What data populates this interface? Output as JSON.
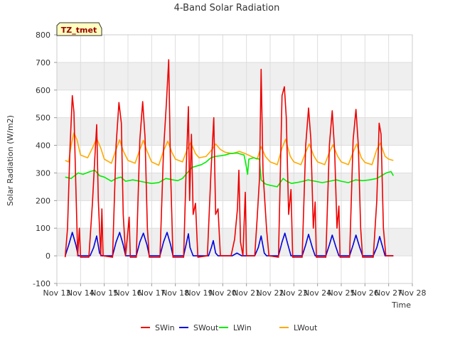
{
  "chart_data": {
    "type": "line",
    "title": "4-Band Solar Radiation",
    "xlabel": "Time",
    "ylabel": "Solar Radiation (W/m2)",
    "site_tag": "TZ_tmet",
    "xlim": [
      13,
      28
    ],
    "ylim": [
      -100,
      800
    ],
    "x_ticks": [
      {
        "value": 13,
        "label": "Nov 13"
      },
      {
        "value": 14,
        "label": "Nov 14"
      },
      {
        "value": 15,
        "label": "Nov 15"
      },
      {
        "value": 16,
        "label": "Nov 16"
      },
      {
        "value": 17,
        "label": "Nov 17"
      },
      {
        "value": 18,
        "label": "Nov 18"
      },
      {
        "value": 19,
        "label": "Nov 19"
      },
      {
        "value": 20,
        "label": "Nov 20"
      },
      {
        "value": 21,
        "label": "Nov 21"
      },
      {
        "value": 22,
        "label": "Nov 22"
      },
      {
        "value": 23,
        "label": "Nov 23"
      },
      {
        "value": 24,
        "label": "Nov 24"
      },
      {
        "value": 25,
        "label": "Nov 25"
      },
      {
        "value": 26,
        "label": "Nov 26"
      },
      {
        "value": 27,
        "label": "Nov 27"
      },
      {
        "value": 28,
        "label": "Nov 28"
      }
    ],
    "y_ticks": [
      -100,
      0,
      100,
      200,
      300,
      400,
      500,
      600,
      700,
      800
    ],
    "grid": true,
    "legend_position": "bottom",
    "series": [
      {
        "name": "SWin",
        "color": "#ee0000",
        "points": [
          [
            13.35,
            -5
          ],
          [
            13.45,
            100
          ],
          [
            13.55,
            380
          ],
          [
            13.65,
            580
          ],
          [
            13.72,
            520
          ],
          [
            13.8,
            250
          ],
          [
            13.88,
            0
          ],
          [
            13.95,
            100
          ],
          [
            14.0,
            -5
          ],
          [
            14.35,
            -5
          ],
          [
            14.5,
            190
          ],
          [
            14.6,
            350
          ],
          [
            14.68,
            475
          ],
          [
            14.75,
            200
          ],
          [
            14.85,
            0
          ],
          [
            14.9,
            170
          ],
          [
            14.95,
            0
          ],
          [
            15.35,
            -5
          ],
          [
            15.5,
            400
          ],
          [
            15.62,
            555
          ],
          [
            15.72,
            480
          ],
          [
            15.8,
            150
          ],
          [
            15.9,
            0
          ],
          [
            16.05,
            140
          ],
          [
            16.1,
            -5
          ],
          [
            16.35,
            -5
          ],
          [
            16.5,
            420
          ],
          [
            16.62,
            558
          ],
          [
            16.72,
            430
          ],
          [
            16.82,
            100
          ],
          [
            16.9,
            -5
          ],
          [
            17.35,
            -5
          ],
          [
            17.5,
            380
          ],
          [
            17.62,
            550
          ],
          [
            17.72,
            710
          ],
          [
            17.8,
            300
          ],
          [
            17.9,
            -5
          ],
          [
            18.35,
            -5
          ],
          [
            18.45,
            300
          ],
          [
            18.55,
            540
          ],
          [
            18.6,
            200
          ],
          [
            18.68,
            440
          ],
          [
            18.75,
            150
          ],
          [
            18.85,
            190
          ],
          [
            18.95,
            -5
          ],
          [
            19.35,
            0
          ],
          [
            19.5,
            300
          ],
          [
            19.62,
            500
          ],
          [
            19.7,
            150
          ],
          [
            19.8,
            170
          ],
          [
            19.9,
            0
          ],
          [
            20.35,
            0
          ],
          [
            20.5,
            60
          ],
          [
            20.62,
            170
          ],
          [
            20.68,
            310
          ],
          [
            20.75,
            50
          ],
          [
            20.85,
            0
          ],
          [
            20.95,
            230
          ],
          [
            21.0,
            0
          ],
          [
            21.35,
            0
          ],
          [
            21.45,
            135
          ],
          [
            21.55,
            280
          ],
          [
            21.62,
            675
          ],
          [
            21.7,
            300
          ],
          [
            21.85,
            95
          ],
          [
            21.95,
            0
          ],
          [
            22.35,
            -5
          ],
          [
            22.5,
            580
          ],
          [
            22.6,
            612
          ],
          [
            22.68,
            500
          ],
          [
            22.78,
            150
          ],
          [
            22.88,
            240
          ],
          [
            22.95,
            -5
          ],
          [
            23.35,
            -5
          ],
          [
            23.5,
            400
          ],
          [
            23.62,
            535
          ],
          [
            23.72,
            420
          ],
          [
            23.82,
            100
          ],
          [
            23.9,
            195
          ],
          [
            23.95,
            -5
          ],
          [
            24.35,
            -5
          ],
          [
            24.5,
            400
          ],
          [
            24.62,
            525
          ],
          [
            24.72,
            380
          ],
          [
            24.82,
            100
          ],
          [
            24.9,
            180
          ],
          [
            24.95,
            -5
          ],
          [
            25.35,
            -5
          ],
          [
            25.5,
            420
          ],
          [
            25.62,
            530
          ],
          [
            25.72,
            400
          ],
          [
            25.82,
            100
          ],
          [
            25.9,
            -5
          ],
          [
            26.35,
            -5
          ],
          [
            26.5,
            200
          ],
          [
            26.6,
            480
          ],
          [
            26.68,
            440
          ],
          [
            26.78,
            100
          ],
          [
            26.88,
            0
          ],
          [
            27.2,
            0
          ]
        ]
      },
      {
        "name": "SWout",
        "color": "#0000dd",
        "points": [
          [
            13.35,
            0
          ],
          [
            13.5,
            40
          ],
          [
            13.65,
            85
          ],
          [
            13.8,
            40
          ],
          [
            13.9,
            0
          ],
          [
            14.4,
            0
          ],
          [
            14.55,
            30
          ],
          [
            14.68,
            72
          ],
          [
            14.8,
            10
          ],
          [
            14.9,
            0
          ],
          [
            15.35,
            0
          ],
          [
            15.5,
            50
          ],
          [
            15.65,
            85
          ],
          [
            15.8,
            40
          ],
          [
            15.9,
            0
          ],
          [
            16.35,
            0
          ],
          [
            16.5,
            50
          ],
          [
            16.65,
            82
          ],
          [
            16.8,
            40
          ],
          [
            16.9,
            0
          ],
          [
            17.35,
            0
          ],
          [
            17.5,
            50
          ],
          [
            17.65,
            85
          ],
          [
            17.8,
            40
          ],
          [
            17.9,
            0
          ],
          [
            18.35,
            0
          ],
          [
            18.45,
            40
          ],
          [
            18.55,
            80
          ],
          [
            18.62,
            30
          ],
          [
            18.75,
            0
          ],
          [
            19.4,
            0
          ],
          [
            19.52,
            30
          ],
          [
            19.6,
            55
          ],
          [
            19.7,
            10
          ],
          [
            19.8,
            0
          ],
          [
            20.4,
            0
          ],
          [
            20.6,
            10
          ],
          [
            20.7,
            5
          ],
          [
            20.8,
            0
          ],
          [
            21.35,
            0
          ],
          [
            21.5,
            30
          ],
          [
            21.62,
            72
          ],
          [
            21.75,
            10
          ],
          [
            21.85,
            0
          ],
          [
            22.35,
            0
          ],
          [
            22.5,
            50
          ],
          [
            22.62,
            82
          ],
          [
            22.75,
            40
          ],
          [
            22.88,
            0
          ],
          [
            23.35,
            0
          ],
          [
            23.5,
            40
          ],
          [
            23.62,
            78
          ],
          [
            23.78,
            30
          ],
          [
            23.9,
            0
          ],
          [
            24.35,
            0
          ],
          [
            24.5,
            40
          ],
          [
            24.62,
            75
          ],
          [
            24.78,
            30
          ],
          [
            24.9,
            0
          ],
          [
            25.35,
            0
          ],
          [
            25.5,
            40
          ],
          [
            25.62,
            75
          ],
          [
            25.78,
            30
          ],
          [
            25.9,
            0
          ],
          [
            26.35,
            0
          ],
          [
            26.5,
            30
          ],
          [
            26.62,
            70
          ],
          [
            26.72,
            40
          ],
          [
            26.85,
            0
          ],
          [
            27.2,
            0
          ]
        ]
      },
      {
        "name": "LWin",
        "color": "#00ee00",
        "points": [
          [
            13.35,
            285
          ],
          [
            13.6,
            280
          ],
          [
            13.9,
            300
          ],
          [
            14.1,
            295
          ],
          [
            14.4,
            305
          ],
          [
            14.6,
            310
          ],
          [
            14.8,
            290
          ],
          [
            15.0,
            285
          ],
          [
            15.3,
            270
          ],
          [
            15.5,
            280
          ],
          [
            15.7,
            285
          ],
          [
            15.9,
            270
          ],
          [
            16.2,
            275
          ],
          [
            16.5,
            270
          ],
          [
            16.8,
            265
          ],
          [
            17.0,
            262
          ],
          [
            17.3,
            265
          ],
          [
            17.6,
            280
          ],
          [
            17.9,
            275
          ],
          [
            18.1,
            272
          ],
          [
            18.3,
            280
          ],
          [
            18.5,
            300
          ],
          [
            18.7,
            320
          ],
          [
            18.9,
            325
          ],
          [
            19.1,
            330
          ],
          [
            19.3,
            340
          ],
          [
            19.5,
            355
          ],
          [
            19.7,
            360
          ],
          [
            19.9,
            362
          ],
          [
            20.1,
            365
          ],
          [
            20.3,
            370
          ],
          [
            20.6,
            372
          ],
          [
            20.9,
            365
          ],
          [
            21.0,
            320
          ],
          [
            21.05,
            295
          ],
          [
            21.1,
            350
          ],
          [
            21.3,
            355
          ],
          [
            21.55,
            350
          ],
          [
            21.62,
            275
          ],
          [
            21.8,
            260
          ],
          [
            22.0,
            255
          ],
          [
            22.3,
            250
          ],
          [
            22.55,
            280
          ],
          [
            22.7,
            270
          ],
          [
            22.9,
            262
          ],
          [
            23.1,
            265
          ],
          [
            23.4,
            270
          ],
          [
            23.6,
            275
          ],
          [
            23.9,
            270
          ],
          [
            24.2,
            265
          ],
          [
            24.5,
            270
          ],
          [
            24.8,
            275
          ],
          [
            25.0,
            270
          ],
          [
            25.3,
            265
          ],
          [
            25.6,
            275
          ],
          [
            25.9,
            272
          ],
          [
            26.2,
            275
          ],
          [
            26.5,
            280
          ],
          [
            26.7,
            290
          ],
          [
            26.9,
            300
          ],
          [
            27.1,
            305
          ],
          [
            27.2,
            290
          ]
        ]
      },
      {
        "name": "LWout",
        "color": "#ffaa00",
        "points": [
          [
            13.35,
            345
          ],
          [
            13.5,
            340
          ],
          [
            13.6,
            400
          ],
          [
            13.72,
            445
          ],
          [
            13.85,
            420
          ],
          [
            14.0,
            365
          ],
          [
            14.3,
            355
          ],
          [
            14.5,
            390
          ],
          [
            14.68,
            425
          ],
          [
            14.85,
            390
          ],
          [
            15.0,
            350
          ],
          [
            15.3,
            335
          ],
          [
            15.5,
            385
          ],
          [
            15.65,
            420
          ],
          [
            15.8,
            380
          ],
          [
            16.0,
            345
          ],
          [
            16.3,
            335
          ],
          [
            16.5,
            385
          ],
          [
            16.65,
            418
          ],
          [
            16.8,
            380
          ],
          [
            17.0,
            340
          ],
          [
            17.3,
            328
          ],
          [
            17.5,
            380
          ],
          [
            17.68,
            415
          ],
          [
            17.85,
            375
          ],
          [
            18.0,
            350
          ],
          [
            18.3,
            340
          ],
          [
            18.5,
            385
          ],
          [
            18.65,
            410
          ],
          [
            18.85,
            370
          ],
          [
            19.0,
            355
          ],
          [
            19.3,
            360
          ],
          [
            19.55,
            385
          ],
          [
            19.7,
            405
          ],
          [
            19.9,
            385
          ],
          [
            20.1,
            375
          ],
          [
            20.4,
            370
          ],
          [
            20.7,
            378
          ],
          [
            20.95,
            370
          ],
          [
            21.2,
            360
          ],
          [
            21.45,
            350
          ],
          [
            21.62,
            395
          ],
          [
            21.8,
            360
          ],
          [
            22.0,
            340
          ],
          [
            22.3,
            330
          ],
          [
            22.5,
            390
          ],
          [
            22.65,
            422
          ],
          [
            22.85,
            360
          ],
          [
            23.0,
            340
          ],
          [
            23.3,
            330
          ],
          [
            23.5,
            375
          ],
          [
            23.65,
            405
          ],
          [
            23.85,
            360
          ],
          [
            24.0,
            340
          ],
          [
            24.3,
            330
          ],
          [
            24.5,
            375
          ],
          [
            24.65,
            402
          ],
          [
            24.85,
            360
          ],
          [
            25.0,
            340
          ],
          [
            25.3,
            330
          ],
          [
            25.5,
            375
          ],
          [
            25.65,
            405
          ],
          [
            25.85,
            355
          ],
          [
            26.0,
            338
          ],
          [
            26.3,
            330
          ],
          [
            26.5,
            385
          ],
          [
            26.65,
            408
          ],
          [
            26.85,
            360
          ],
          [
            27.0,
            350
          ],
          [
            27.2,
            345
          ]
        ]
      }
    ]
  }
}
